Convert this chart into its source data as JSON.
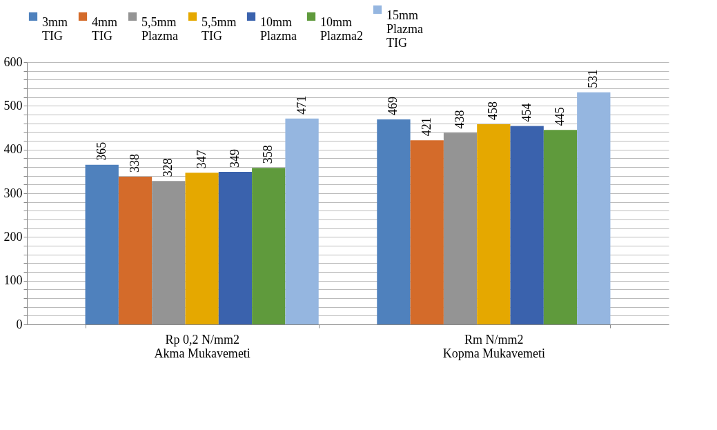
{
  "chart_data": {
    "type": "bar",
    "categories": [
      "Rp 0,2 N/mm2\nAkma Mukavemeti",
      "Rm N/mm2\nKopma Mukavemeti"
    ],
    "series": [
      {
        "name": "3mm\nTIG",
        "color": "#4f81bd",
        "values": [
          365,
          469
        ]
      },
      {
        "name": "4mm\nTIG",
        "color": "#d46b2a",
        "values": [
          338,
          421
        ]
      },
      {
        "name": "5,5mm\nPlazma",
        "color": "#949494",
        "values": [
          328,
          438
        ]
      },
      {
        "name": "5,5mm\nTIG",
        "color": "#e5a800",
        "values": [
          347,
          458
        ]
      },
      {
        "name": "10mm\nPlazma",
        "color": "#3a62ad",
        "values": [
          349,
          454
        ]
      },
      {
        "name": "10mm\nPlazma2",
        "color": "#5f9a3c",
        "values": [
          358,
          445
        ]
      },
      {
        "name": "15mm\nPlazma\nTIG",
        "color": "#95b6e0",
        "values": [
          471,
          531
        ]
      }
    ],
    "ylim": [
      0,
      600
    ],
    "yticks": [
      0,
      {
        "value": 20,
        "label": null
      },
      {
        "value": 40,
        "label": null
      },
      {
        "value": 60,
        "label": null
      },
      {
        "value": 80,
        "label": null
      },
      100,
      {
        "value": 120,
        "label": null
      },
      {
        "value": 140,
        "label": null
      },
      {
        "value": 160,
        "label": null
      },
      {
        "value": 180,
        "label": null
      },
      200,
      {
        "value": 220,
        "label": null
      },
      {
        "value": 240,
        "label": null
      },
      {
        "value": 260,
        "label": null
      },
      {
        "value": 280,
        "label": null
      },
      300,
      {
        "value": 320,
        "label": null
      },
      {
        "value": 340,
        "label": null
      },
      {
        "value": 360,
        "label": null
      },
      {
        "value": 380,
        "label": null
      },
      400,
      {
        "value": 420,
        "label": null
      },
      {
        "value": 440,
        "label": null
      },
      {
        "value": 460,
        "label": null
      },
      {
        "value": 480,
        "label": null
      },
      500,
      {
        "value": 520,
        "label": null
      },
      {
        "value": 540,
        "label": null
      },
      {
        "value": 560,
        "label": null
      },
      {
        "value": 580,
        "label": null
      },
      600
    ],
    "grid": "y",
    "legend": "top",
    "data_labels": true
  }
}
